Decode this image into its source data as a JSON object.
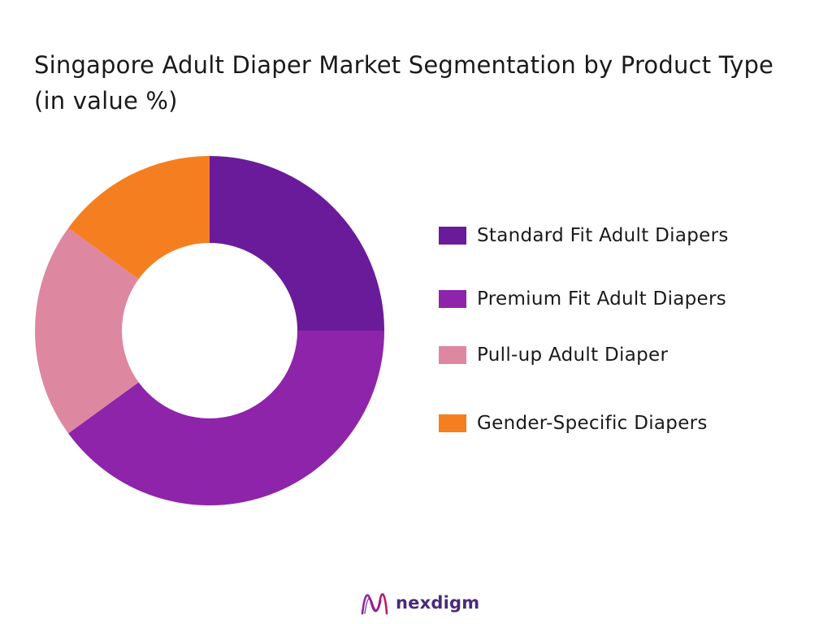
{
  "chart_data": {
    "type": "pie",
    "title": "Singapore Adult Diaper Market Segmentation by Product Type (in value %)",
    "donut": true,
    "legend_position": "right",
    "series": [
      {
        "name": "Standard Fit Adult Diapers",
        "value": 25,
        "color": "#6a1b9a"
      },
      {
        "name": "Premium Fit Adult Diapers",
        "value": 40,
        "color": "#8e24aa"
      },
      {
        "name": "Pull-up Adult Diaper",
        "value": 20,
        "color": "#de87a0"
      },
      {
        "name": "Gender-Specific Diapers",
        "value": 15,
        "color": "#f57f20"
      }
    ]
  },
  "brand": {
    "name": "nexdigm",
    "logo_icon": "nexdigm-wave-icon"
  }
}
